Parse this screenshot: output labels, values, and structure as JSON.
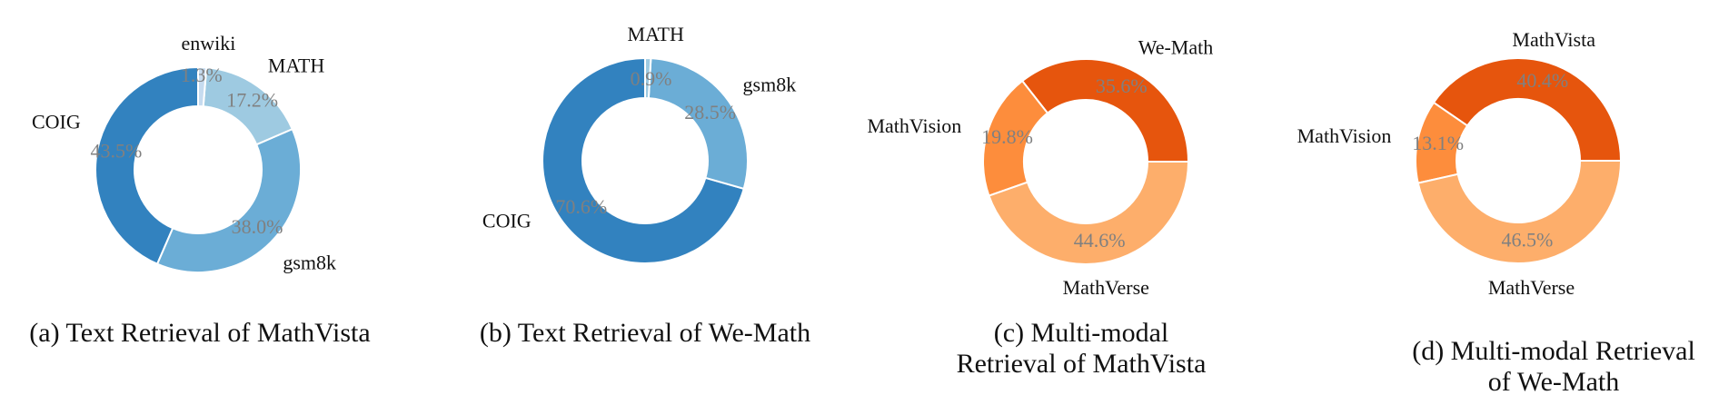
{
  "colors": {
    "blue_dark": "#3282bf",
    "blue_mid": "#6badd6",
    "blue_light": "#9ecae1",
    "blue_pale": "#c6dbef",
    "orange_dark": "#e6550d",
    "orange_mid": "#fd8d3c",
    "orange_light": "#fdae6b",
    "pct_text": "#808080",
    "label_text": "#111111"
  },
  "chart_data": [
    {
      "type": "pie",
      "style": "donut",
      "caption": "(a) Text Retrieval of MathVista",
      "slices": [
        {
          "label": "COIG",
          "value": 43.5,
          "pct_label": "43.5%",
          "color": "#3282bf"
        },
        {
          "label": "gsm8k",
          "value": 38.0,
          "pct_label": "38.0%",
          "color": "#6badd6"
        },
        {
          "label": "MATH",
          "value": 17.2,
          "pct_label": "17.2%",
          "color": "#9ecae1"
        },
        {
          "label": "enwiki",
          "value": 1.3,
          "pct_label": "1.3%",
          "color": "#c6dbef"
        }
      ]
    },
    {
      "type": "pie",
      "style": "donut",
      "caption": "(b) Text Retrieval of We-Math",
      "slices": [
        {
          "label": "COIG",
          "value": 70.6,
          "pct_label": "70.6%",
          "color": "#3282bf"
        },
        {
          "label": "gsm8k",
          "value": 28.5,
          "pct_label": "28.5%",
          "color": "#6badd6"
        },
        {
          "label": "MATH",
          "value": 0.9,
          "pct_label": "0.9%",
          "color": "#9ecae1"
        }
      ]
    },
    {
      "type": "pie",
      "style": "donut",
      "caption": "(c) Multi-modal Retrieval of MathVista",
      "slices": [
        {
          "label": "We-Math",
          "value": 35.6,
          "pct_label": "35.6%",
          "color": "#e6550d"
        },
        {
          "label": "MathVision",
          "value": 19.8,
          "pct_label": "19.8%",
          "color": "#fd8d3c"
        },
        {
          "label": "MathVerse",
          "value": 44.6,
          "pct_label": "44.6%",
          "color": "#fdae6b"
        }
      ]
    },
    {
      "type": "pie",
      "style": "donut",
      "caption": "(d) Multi-modal Retrieval of We-Math",
      "slices": [
        {
          "label": "MathVista",
          "value": 40.4,
          "pct_label": "40.4%",
          "color": "#e6550d"
        },
        {
          "label": "MathVision",
          "value": 13.1,
          "pct_label": "13.1%",
          "color": "#fd8d3c"
        },
        {
          "label": "MathVerse",
          "value": 46.5,
          "pct_label": "46.5%",
          "color": "#fdae6b"
        }
      ]
    }
  ]
}
